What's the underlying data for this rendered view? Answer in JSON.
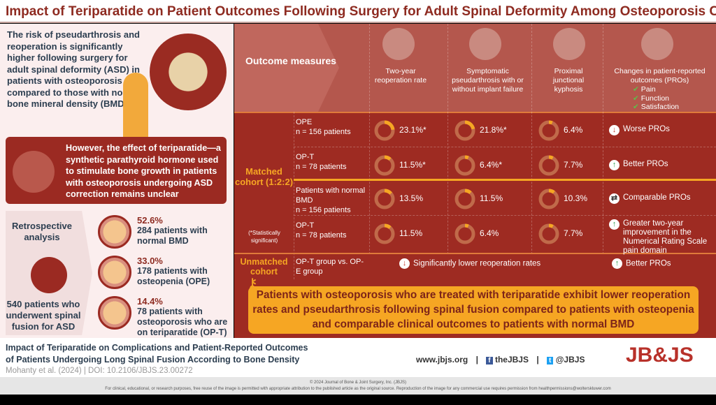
{
  "title": "Impact of Teriparatide on Patient Outcomes Following Surgery for Adult Spinal Deformity Among Osteoporosis Cases",
  "left": {
    "intro": "The risk of pseudarthrosis and reoperation is significantly higher following surgery for adult spinal deformity (ASD) in patients with osteoporosis compared to those with normal bone mineral density (BMD)",
    "however": "However, the effect of teriparatide—a synthetic parathyroid hormone used to stimulate bone growth in patients with osteoporosis undergoing ASD correction remains unclear",
    "retro": "Retrospective analysis",
    "total": "540 patients who underwent spinal fusion for ASD",
    "populations": [
      {
        "pct": "52.6%",
        "desc": "284 patients with normal BMD",
        "fraction": 0.526
      },
      {
        "pct": "33.0%",
        "desc": "178 patients with osteopenia (OPE)",
        "fraction": 0.33
      },
      {
        "pct": "14.4%",
        "desc": "78 patients with osteoporosis who are on teriparatide (OP-T)",
        "fraction": 0.144
      }
    ]
  },
  "table": {
    "outcome_label": "Outcome measures",
    "columns": [
      "Two-year reoperation rate",
      "Symptomatic pseudarthrosis with or without implant failure",
      "Proximal junctional kyphosis",
      "Changes in patient-reported outcomes (PROs)"
    ],
    "pro_items": [
      "Pain",
      "Function",
      "Satisfaction"
    ],
    "matched": "Matched cohort (1:2:2)",
    "sig_note": "(*Statistically significant)",
    "rows": [
      {
        "group": "OPE",
        "n": "n = 156 patients",
        "values": [
          "23.1%*",
          "21.8%*",
          "6.4%"
        ],
        "nums": [
          23.1,
          21.8,
          6.4
        ],
        "pro": "Worse PROs",
        "pro_icon": "down"
      },
      {
        "group": "OP-T",
        "n": "n = 78 patients",
        "values": [
          "11.5%*",
          "6.4%*",
          "7.7%"
        ],
        "nums": [
          11.5,
          6.4,
          7.7
        ],
        "pro": "Better PROs",
        "pro_icon": "up"
      },
      {
        "group": "Patients with normal BMD",
        "n": "n = 156 patients",
        "values": [
          "13.5%",
          "11.5%",
          "10.3%"
        ],
        "nums": [
          13.5,
          11.5,
          10.3
        ],
        "pro": "Comparable PROs",
        "pro_icon": "equal"
      },
      {
        "group": "OP-T",
        "n": "n = 78 patients",
        "values": [
          "11.5%",
          "6.4%",
          "7.7%"
        ],
        "nums": [
          11.5,
          6.4,
          7.7
        ],
        "pro": "Greater two-year improvement in the Numerical Rating Scale pain domain",
        "pro_icon": "up"
      }
    ],
    "unmatched": "Unmatched cohort",
    "unmatched_group": "OP-T group vs. OP-E group",
    "unmatched_result": "Significantly lower reoperation rates",
    "unmatched_pro": "Better PROs",
    "key_finding": "Patients with osteoporosis who are treated with teriparatide exhibit lower reoperation rates and pseudarthrosis following spinal fusion compared to patients with osteopenia and comparable clinical outcomes to patients with normal BMD"
  },
  "footer": {
    "title1": "Impact of Teriparatide on Complications and Patient-Reported Outcomes",
    "title2": "of Patients Undergoing Long Spinal Fusion According to Bone Density",
    "citation": "Mohanty et al. (2024)  |  DOI: 10.2106/JBJS.23.00272",
    "website": "www.jbjs.org",
    "facebook": "theJBJS",
    "twitter": "@JBJS",
    "logo": "JB&JS",
    "copyright": "© 2024 Journal of Bone & Joint Surgery, Inc. (JBJS)",
    "license": "For clinical, educational, or research purposes, free reuse of the image is permitted with appropriate attribution to the published article as the original source. Reproduction of the image for any commercial use requires permission from healthpermissions@wolterskluwer.com"
  },
  "colors": {
    "brand": "#9e2b22",
    "accent": "#f6a623",
    "text": "#2c3e50"
  }
}
